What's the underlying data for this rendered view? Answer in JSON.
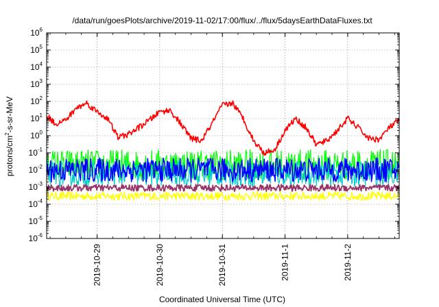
{
  "chart_data": {
    "type": "line",
    "title": "/data/run/goesPlots/archive/2019-11-02/17:00/flux/../flux/5daysEarthDataFluxes.txt",
    "xlabel": "Coordinated Universal Time (UTC)",
    "ylabel": "protons/cm²-s-sr-MeV",
    "ylabel_parts": {
      "base": "protons/cm",
      "sup": "2",
      "rest": "-s-sr-MeV"
    },
    "yscale": "log",
    "ylim": [
      1e-06,
      1000000.0
    ],
    "xlim": [
      "2019-10-28T04:40",
      "2019-11-02T19:45"
    ],
    "x_ticks": [
      "2019-10-29",
      "2019-10-30",
      "2019-10-31",
      "2019-11-1",
      "2019-11-2"
    ],
    "x_tick_dates": [
      "2019-10-29",
      "2019-10-30",
      "2019-10-31",
      "2019-11-01",
      "2019-11-02"
    ],
    "y_ticks": [
      {
        "base": "10",
        "exp": "-6",
        "value": 1e-06
      },
      {
        "base": "10",
        "exp": "-5",
        "value": 1e-05
      },
      {
        "base": "10",
        "exp": "-4",
        "value": 0.0001
      },
      {
        "base": "10",
        "exp": "-3",
        "value": 0.001
      },
      {
        "base": "10",
        "exp": "-2",
        "value": 0.01
      },
      {
        "base": "10",
        "exp": "-1",
        "value": 0.1
      },
      {
        "base": "10",
        "exp": "0",
        "value": 1
      },
      {
        "base": "10",
        "exp": "1",
        "value": 10.0
      },
      {
        "base": "10",
        "exp": "2",
        "value": 100.0
      },
      {
        "base": "10",
        "exp": "3",
        "value": 1000.0
      },
      {
        "base": "10",
        "exp": "4",
        "value": 10000.0
      },
      {
        "base": "10",
        "exp": "5",
        "value": 100000.0
      },
      {
        "base": "10",
        "exp": "6",
        "value": 1000000.0
      }
    ],
    "grid": true,
    "series": [
      {
        "color": "#ff0000",
        "x": [
          "2019-10-28T04:40",
          "2019-10-28T08:00",
          "2019-10-28T12:00",
          "2019-10-28T16:00",
          "2019-10-28T20:00",
          "2019-10-29T00:00",
          "2019-10-29T04:00",
          "2019-10-29T08:00",
          "2019-10-29T12:00",
          "2019-10-29T16:00",
          "2019-10-29T20:00",
          "2019-10-30T00:00",
          "2019-10-30T04:00",
          "2019-10-30T08:00",
          "2019-10-30T12:00",
          "2019-10-30T16:00",
          "2019-10-30T20:00",
          "2019-10-31T00:00",
          "2019-10-31T04:00",
          "2019-10-31T08:00",
          "2019-10-31T12:00",
          "2019-10-31T16:00",
          "2019-10-31T20:00",
          "2019-11-01T00:00",
          "2019-11-01T04:00",
          "2019-11-01T08:00",
          "2019-11-01T12:00",
          "2019-11-01T16:00",
          "2019-11-01T20:00",
          "2019-11-02T00:00",
          "2019-11-02T04:00",
          "2019-11-02T08:00",
          "2019-11-02T12:00",
          "2019-11-02T16:00",
          "2019-11-02T19:45"
        ],
        "y": [
          15,
          5,
          8,
          40,
          80,
          25,
          10,
          0.8,
          1.2,
          3,
          8,
          25,
          30,
          5,
          0.7,
          0.5,
          5,
          60,
          80,
          10,
          0.5,
          0.1,
          0.15,
          2,
          10,
          3,
          0.3,
          0.5,
          2,
          10,
          3,
          0.7,
          0.6,
          3,
          8
        ]
      },
      {
        "color": "#00ff00",
        "level": 0.02
      },
      {
        "color": "#00cccc",
        "level": 0.006
      },
      {
        "color": "#0000ff",
        "level": 0.01
      },
      {
        "color": "#ffff00",
        "level": 0.0003
      },
      {
        "color": "#993366",
        "level": 0.0009
      }
    ]
  }
}
